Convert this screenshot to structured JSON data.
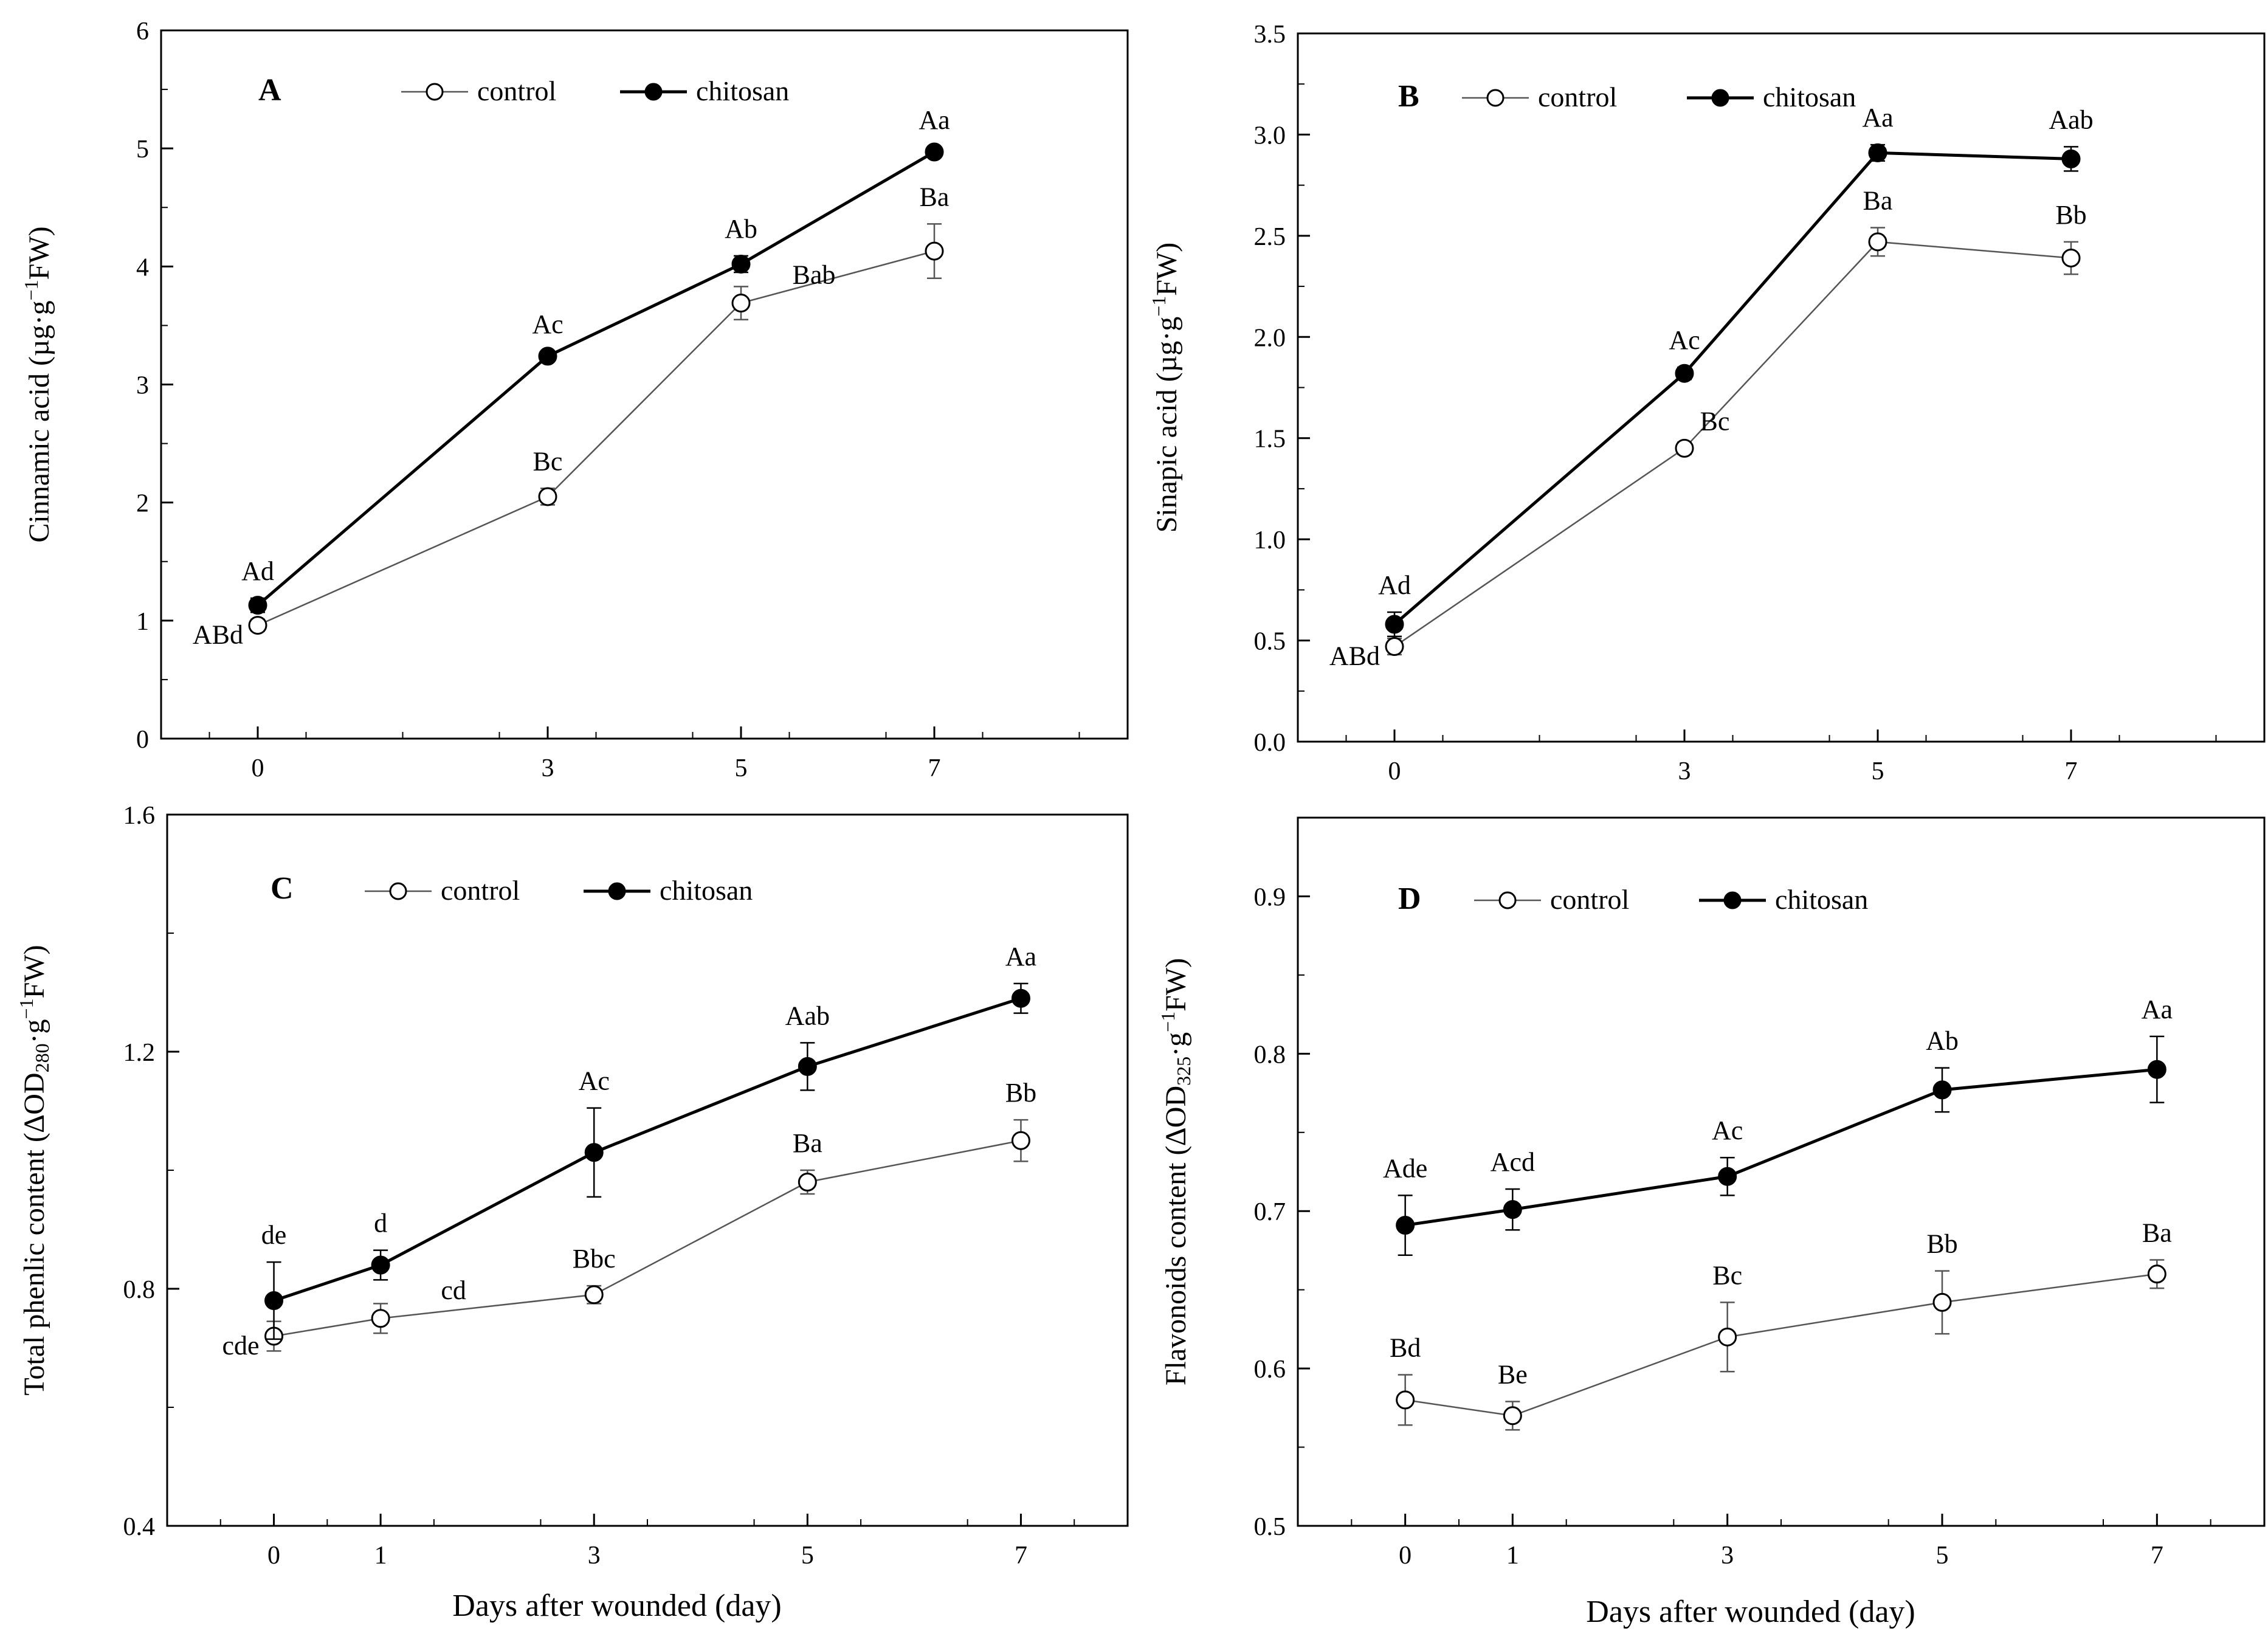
{
  "figure": {
    "xlabel": "Days after wounded (day)"
  },
  "chart_data": [
    {
      "panel": "A",
      "type": "line",
      "title": "",
      "xlabel": "",
      "ylabel_parts": [
        "Cinnamic acid (µg·g",
        "−1",
        "FW)"
      ],
      "xlim": [
        -1,
        9
      ],
      "ylim": [
        0,
        6
      ],
      "xticks": [
        0,
        3,
        5,
        7
      ],
      "xtick_labels": [
        "0",
        "3",
        "5",
        "7"
      ],
      "yticks": [
        0,
        1,
        2,
        3,
        4,
        5,
        6
      ],
      "ytick_labels": [
        "0",
        "1",
        "2",
        "3",
        "4",
        "5",
        "6"
      ],
      "legend": {
        "placement": "top-center",
        "entries": [
          "control",
          "chitosan"
        ]
      },
      "series": [
        {
          "name": "control",
          "marker": "open-circle",
          "x": [
            0,
            3,
            5,
            7
          ],
          "values": [
            0.96,
            2.05,
            3.69,
            4.13
          ],
          "errors": [
            0.05,
            0.07,
            0.14,
            0.23
          ],
          "labels": [
            "ABd",
            "Bc",
            "Bab",
            "Ba"
          ]
        },
        {
          "name": "chitosan",
          "marker": "filled-circle",
          "x": [
            0,
            3,
            5,
            7
          ],
          "values": [
            1.13,
            3.24,
            4.02,
            4.97
          ],
          "errors": [
            0.06,
            0.04,
            0.07,
            0.04
          ],
          "labels": [
            "Ad",
            "Ac",
            "Ab",
            "Aa"
          ]
        }
      ]
    },
    {
      "panel": "B",
      "type": "line",
      "title": "",
      "xlabel": "",
      "ylabel_parts": [
        "Sinapic acid (µg·g",
        "−1",
        "FW)"
      ],
      "xlim": [
        -1,
        9
      ],
      "ylim": [
        0,
        3.5
      ],
      "xticks": [
        0,
        3,
        5,
        7
      ],
      "xtick_labels": [
        "0",
        "3",
        "5",
        "7"
      ],
      "yticks": [
        0,
        0.5,
        1,
        1.5,
        2,
        2.5,
        3,
        3.5
      ],
      "ytick_labels": [
        "0.0",
        "0.5",
        "1.0",
        "1.5",
        "2.0",
        "2.5",
        "3.0",
        "3.5"
      ],
      "legend": {
        "placement": "top-center",
        "entries": [
          "control",
          "chitosan"
        ]
      },
      "series": [
        {
          "name": "control",
          "marker": "open-circle",
          "x": [
            0,
            3,
            5,
            7
          ],
          "values": [
            0.47,
            1.45,
            2.47,
            2.39
          ],
          "errors": [
            0.04,
            0.03,
            0.07,
            0.08
          ],
          "labels": [
            "ABd",
            "Bc",
            "Ba",
            "Bb"
          ]
        },
        {
          "name": "chitosan",
          "marker": "filled-circle",
          "x": [
            0,
            3,
            5,
            7
          ],
          "values": [
            0.58,
            1.82,
            2.91,
            2.88
          ],
          "errors": [
            0.06,
            0.03,
            0.04,
            0.06
          ],
          "labels": [
            "Ad",
            "Ac",
            "Aa",
            "Aab"
          ]
        }
      ]
    },
    {
      "panel": "C",
      "type": "line",
      "title": "",
      "xlabel": "Days after wounded (day)",
      "ylabel_parts": [
        "Total phenlic content (∆OD",
        "280",
        "·g",
        "−1",
        "FW)"
      ],
      "xlim": [
        -1,
        8
      ],
      "ylim": [
        0.4,
        1.6
      ],
      "xticks": [
        0,
        1,
        3,
        5,
        7
      ],
      "xtick_labels": [
        "0",
        "1",
        "3",
        "5",
        "7"
      ],
      "yticks": [
        0.4,
        0.8,
        1.2,
        1.6
      ],
      "ytick_labels": [
        "0.4",
        "0.8",
        "1.2",
        "1.6"
      ],
      "legend": {
        "placement": "top-center",
        "entries": [
          "control",
          "chitosan"
        ]
      },
      "series": [
        {
          "name": "control",
          "marker": "open-circle",
          "x": [
            0,
            1,
            3,
            5,
            7
          ],
          "values": [
            0.72,
            0.75,
            0.79,
            0.98,
            1.05
          ],
          "errors": [
            0.025,
            0.025,
            0.015,
            0.02,
            0.035
          ],
          "labels": [
            "cde",
            "cd",
            "Bbc",
            "Ba",
            "Bb"
          ]
        },
        {
          "name": "chitosan",
          "marker": "filled-circle",
          "x": [
            0,
            1,
            3,
            5,
            7
          ],
          "values": [
            0.78,
            0.84,
            1.03,
            1.175,
            1.29
          ],
          "errors": [
            0.065,
            0.025,
            0.075,
            0.04,
            0.025
          ],
          "labels": [
            "de",
            "d",
            "Ac",
            "Aab",
            "Aa"
          ]
        }
      ]
    },
    {
      "panel": "D",
      "type": "line",
      "title": "",
      "xlabel": "Days after wounded (day)",
      "ylabel_parts": [
        "Flavonoids content (∆OD",
        "325",
        "·g",
        "−1",
        "FW)"
      ],
      "xlim": [
        -1,
        8
      ],
      "ylim": [
        0.5,
        0.95
      ],
      "xticks": [
        0,
        1,
        3,
        5,
        7
      ],
      "xtick_labels": [
        "0",
        "1",
        "3",
        "5",
        "7"
      ],
      "yticks": [
        0.5,
        0.6,
        0.7,
        0.8,
        0.9
      ],
      "ytick_labels": [
        "0.5",
        "0.6",
        "0.7",
        "0.8",
        "0.9"
      ],
      "legend": {
        "placement": "top-center",
        "entries": [
          "control",
          "chitosan"
        ]
      },
      "series": [
        {
          "name": "control",
          "marker": "open-circle",
          "x": [
            0,
            1,
            3,
            5,
            7
          ],
          "values": [
            0.58,
            0.57,
            0.62,
            0.642,
            0.66
          ],
          "errors": [
            0.016,
            0.009,
            0.022,
            0.02,
            0.009
          ],
          "labels": [
            "Bd",
            "Be",
            "Bc",
            "Bb",
            "Ba"
          ]
        },
        {
          "name": "chitosan",
          "marker": "filled-circle",
          "x": [
            0,
            1,
            3,
            5,
            7
          ],
          "values": [
            0.691,
            0.701,
            0.722,
            0.777,
            0.79
          ],
          "errors": [
            0.019,
            0.013,
            0.012,
            0.014,
            0.021
          ],
          "labels": [
            "Ade",
            "Acd",
            "Ac",
            "Ab",
            "Aa"
          ]
        }
      ]
    }
  ]
}
